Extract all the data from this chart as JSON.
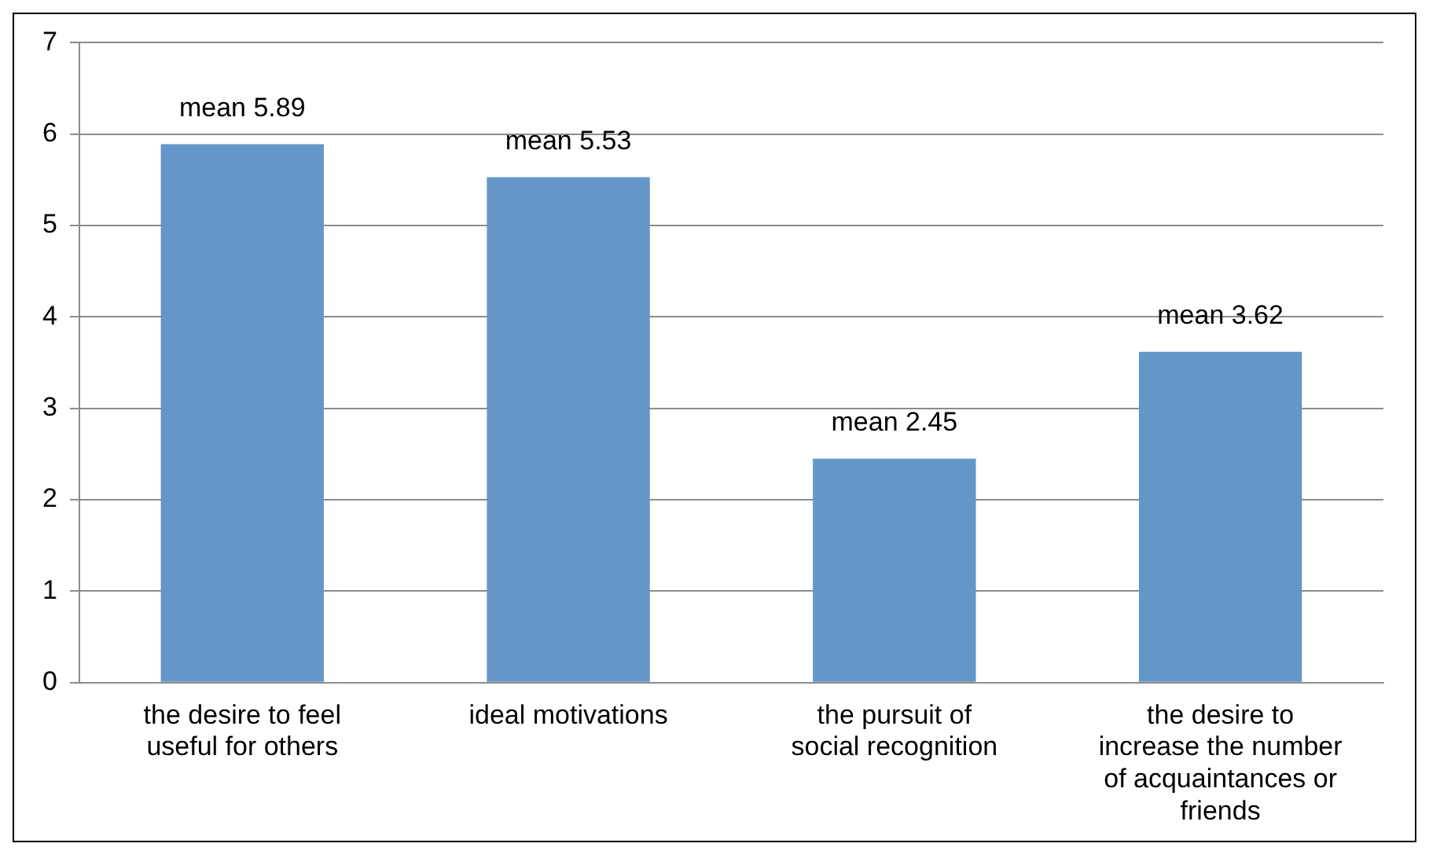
{
  "chart_data": {
    "type": "bar",
    "categories": [
      "the desire to feel useful for others",
      "ideal motivations",
      "the pursuit of social recognition",
      "the desire to increase the number of acquaintances or friends"
    ],
    "values": [
      5.89,
      5.53,
      2.45,
      3.62
    ],
    "color": "#6496c8",
    "value_labels": [
      "mean 5.89",
      "mean 5.53",
      "mean 2.45",
      "mean 3.62"
    ],
    "ylim": [
      0,
      7
    ],
    "yticks": [
      0,
      1,
      2,
      3,
      4,
      5,
      6,
      7
    ],
    "grid": "y",
    "legend": false
  }
}
